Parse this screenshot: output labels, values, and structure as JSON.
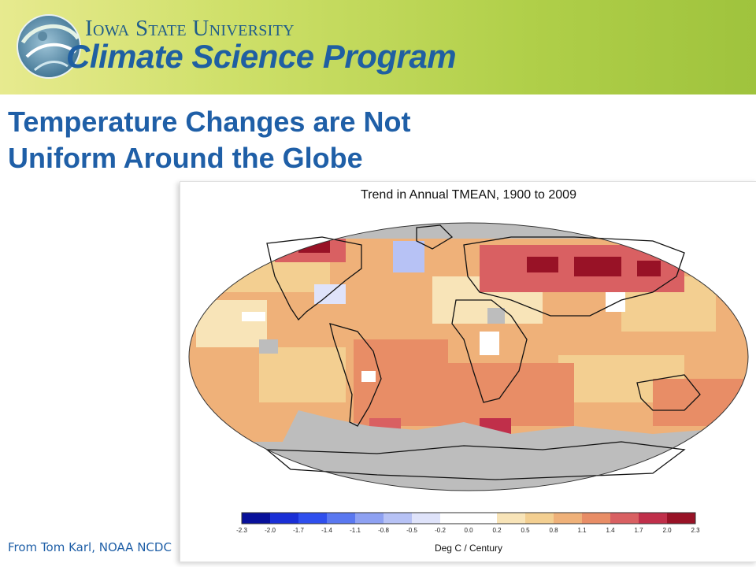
{
  "header": {
    "university": "Iowa State University",
    "program": "Climate Science Program",
    "logo_icon": "globe-swirl-logo"
  },
  "slide": {
    "title_line1": "Temperature Changes are Not",
    "title_line2": "Uniform Around the Globe",
    "source": "From Tom Karl, NOAA NCDC"
  },
  "figure": {
    "title": "Trend in Annual TMEAN, 1900 to 2009",
    "colorbar_unit": "Deg C / Century",
    "colorbar_ticks": [
      "-2.3",
      "-2.0",
      "-1.7",
      "-1.4",
      "-1.1",
      "-0.8",
      "-0.5",
      "-0.2",
      "0.0",
      "0.2",
      "0.5",
      "0.8",
      "1.1",
      "1.4",
      "1.7",
      "2.0",
      "2.3"
    ],
    "colorbar_colors": [
      "#08109a",
      "#1a2fd6",
      "#2f4fee",
      "#5a78f0",
      "#8ea1f2",
      "#b7c2f5",
      "#dfe3fa",
      "#ffffff",
      "#ffffff",
      "#f8e4b8",
      "#f3cf91",
      "#efb179",
      "#e88d66",
      "#d96062",
      "#c02f4a",
      "#981226",
      "#6f0a17"
    ],
    "no_data_color": "#bdbdbd"
  }
}
